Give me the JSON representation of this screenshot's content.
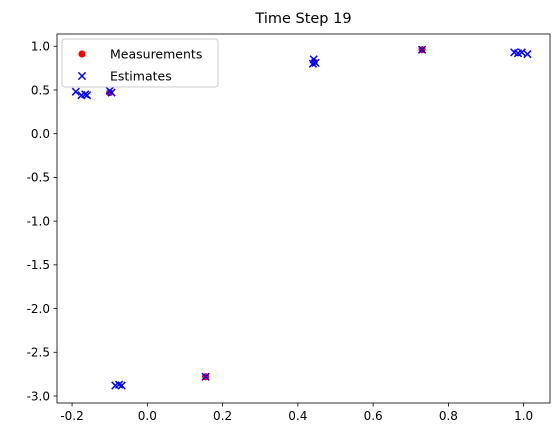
{
  "chart_data": {
    "type": "scatter",
    "title": "Time Step 19",
    "xlabel": "",
    "ylabel": "",
    "xlim": [
      -0.24,
      1.07
    ],
    "ylim": [
      -3.08,
      1.14
    ],
    "xticks": [
      "-0.2",
      "0.0",
      "0.2",
      "0.4",
      "0.6",
      "0.8",
      "1.0"
    ],
    "xtick_values": [
      -0.2,
      0.0,
      0.2,
      0.4,
      0.6,
      0.8,
      1.0
    ],
    "yticks": [
      "-3.0",
      "-2.5",
      "-2.0",
      "-1.5",
      "-1.0",
      "-0.5",
      "0.0",
      "0.5",
      "1.0"
    ],
    "ytick_values": [
      -3.0,
      -2.5,
      -2.0,
      -1.5,
      -1.0,
      -0.5,
      0.0,
      0.5,
      1.0
    ],
    "grid": false,
    "legend_position": "top-left",
    "series": [
      {
        "name": "Measurements",
        "marker": "circle",
        "color": "#ff0000",
        "points": [
          [
            -0.1,
            0.47
          ],
          [
            0.155,
            -2.78
          ],
          [
            0.443,
            0.82
          ],
          [
            0.73,
            0.96
          ]
        ]
      },
      {
        "name": "Estimates",
        "marker": "x",
        "color": "#0000ff",
        "points": [
          [
            -0.19,
            0.48
          ],
          [
            -0.175,
            0.44
          ],
          [
            -0.165,
            0.45
          ],
          [
            -0.16,
            0.44
          ],
          [
            -0.1,
            0.49
          ],
          [
            -0.095,
            0.47
          ],
          [
            -0.085,
            -2.88
          ],
          [
            -0.075,
            -2.87
          ],
          [
            -0.068,
            -2.88
          ],
          [
            0.155,
            -2.78
          ],
          [
            0.44,
            0.8
          ],
          [
            0.442,
            0.85
          ],
          [
            0.447,
            0.81
          ],
          [
            0.73,
            0.96
          ],
          [
            0.975,
            0.93
          ],
          [
            0.985,
            0.92
          ],
          [
            0.995,
            0.93
          ],
          [
            1.01,
            0.91
          ]
        ]
      }
    ]
  }
}
